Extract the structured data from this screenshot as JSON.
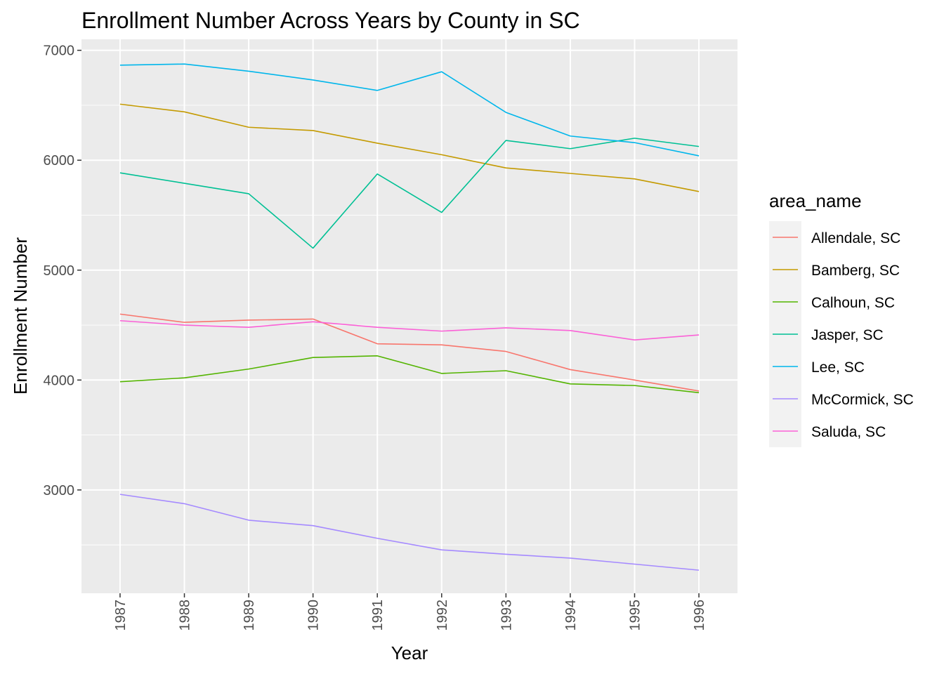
{
  "chart_data": {
    "type": "line",
    "title": "Enrollment Number Across Years by County in SC",
    "xlabel": "Year",
    "ylabel": "Enrollment Number",
    "x": [
      1987,
      1988,
      1989,
      1990,
      1991,
      1992,
      1993,
      1994,
      1995,
      1996
    ],
    "xlim": [
      1986.4,
      1996.6
    ],
    "ylim": [
      2060,
      7100
    ],
    "yticks": [
      3000,
      4000,
      5000,
      6000,
      7000
    ],
    "grid": true,
    "legend": {
      "title": "area_name",
      "position": "right"
    },
    "series": [
      {
        "name": "Allendale, SC",
        "color": "#F8766D",
        "values": [
          4600,
          4525,
          4545,
          4555,
          4330,
          4320,
          4260,
          4095,
          4000,
          3900
        ]
      },
      {
        "name": "Bamberg, SC",
        "color": "#C49A00",
        "values": [
          6510,
          6440,
          6300,
          6270,
          6155,
          6050,
          5930,
          5880,
          5830,
          5715
        ]
      },
      {
        "name": "Calhoun, SC",
        "color": "#53B400",
        "values": [
          3985,
          4020,
          4100,
          4205,
          4220,
          4060,
          4085,
          3965,
          3950,
          3885
        ]
      },
      {
        "name": "Jasper, SC",
        "color": "#00C094",
        "values": [
          5885,
          5790,
          5695,
          5200,
          5875,
          5525,
          6180,
          6105,
          6200,
          6125
        ]
      },
      {
        "name": "Lee, SC",
        "color": "#00B6EB",
        "values": [
          6865,
          6875,
          6810,
          6730,
          6635,
          6805,
          6435,
          6220,
          6160,
          6040
        ]
      },
      {
        "name": "McCormick, SC",
        "color": "#A58AFF",
        "values": [
          2960,
          2875,
          2725,
          2675,
          2560,
          2455,
          2415,
          2380,
          2325,
          2270
        ]
      },
      {
        "name": "Saluda, SC",
        "color": "#FB61D7",
        "values": [
          4540,
          4500,
          4480,
          4530,
          4480,
          4445,
          4475,
          4450,
          4365,
          4410
        ]
      }
    ]
  }
}
